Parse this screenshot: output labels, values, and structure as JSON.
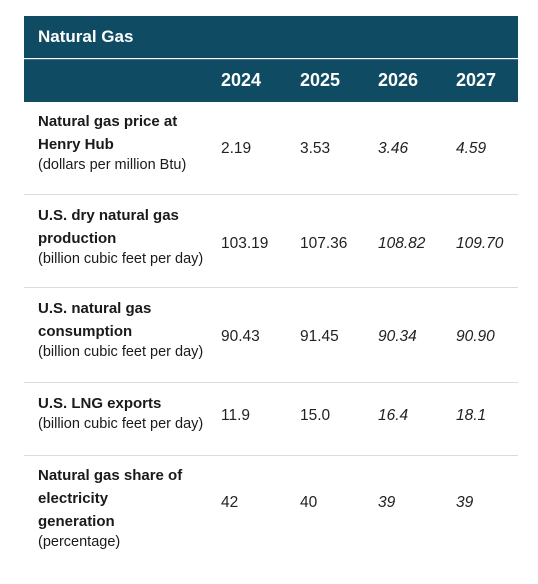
{
  "table": {
    "title": "Natural Gas",
    "years": [
      "2024",
      "2025",
      "2026",
      "2027"
    ],
    "rows": [
      {
        "label": "Natural gas price at Henry Hub",
        "unit": "(dollars per million Btu)",
        "values": [
          "2.19",
          "3.53",
          "3.46",
          "4.59"
        ]
      },
      {
        "label": "U.S. dry natural gas production",
        "unit": "(billion cubic feet per day)",
        "values": [
          "103.19",
          "107.36",
          "108.82",
          "109.70"
        ]
      },
      {
        "label": "U.S. natural gas consumption",
        "unit": "(billion cubic feet per day)",
        "values": [
          "90.43",
          "91.45",
          "90.34",
          "90.90"
        ]
      },
      {
        "label": "U.S. LNG exports",
        "unit": "(billion cubic feet per day)",
        "values": [
          "11.9",
          "15.0",
          "16.4",
          "18.1"
        ]
      },
      {
        "label": "Natural gas share of electricity generation",
        "unit": "(percentage)",
        "values": [
          "42",
          "40",
          "39",
          "39"
        ]
      }
    ]
  }
}
